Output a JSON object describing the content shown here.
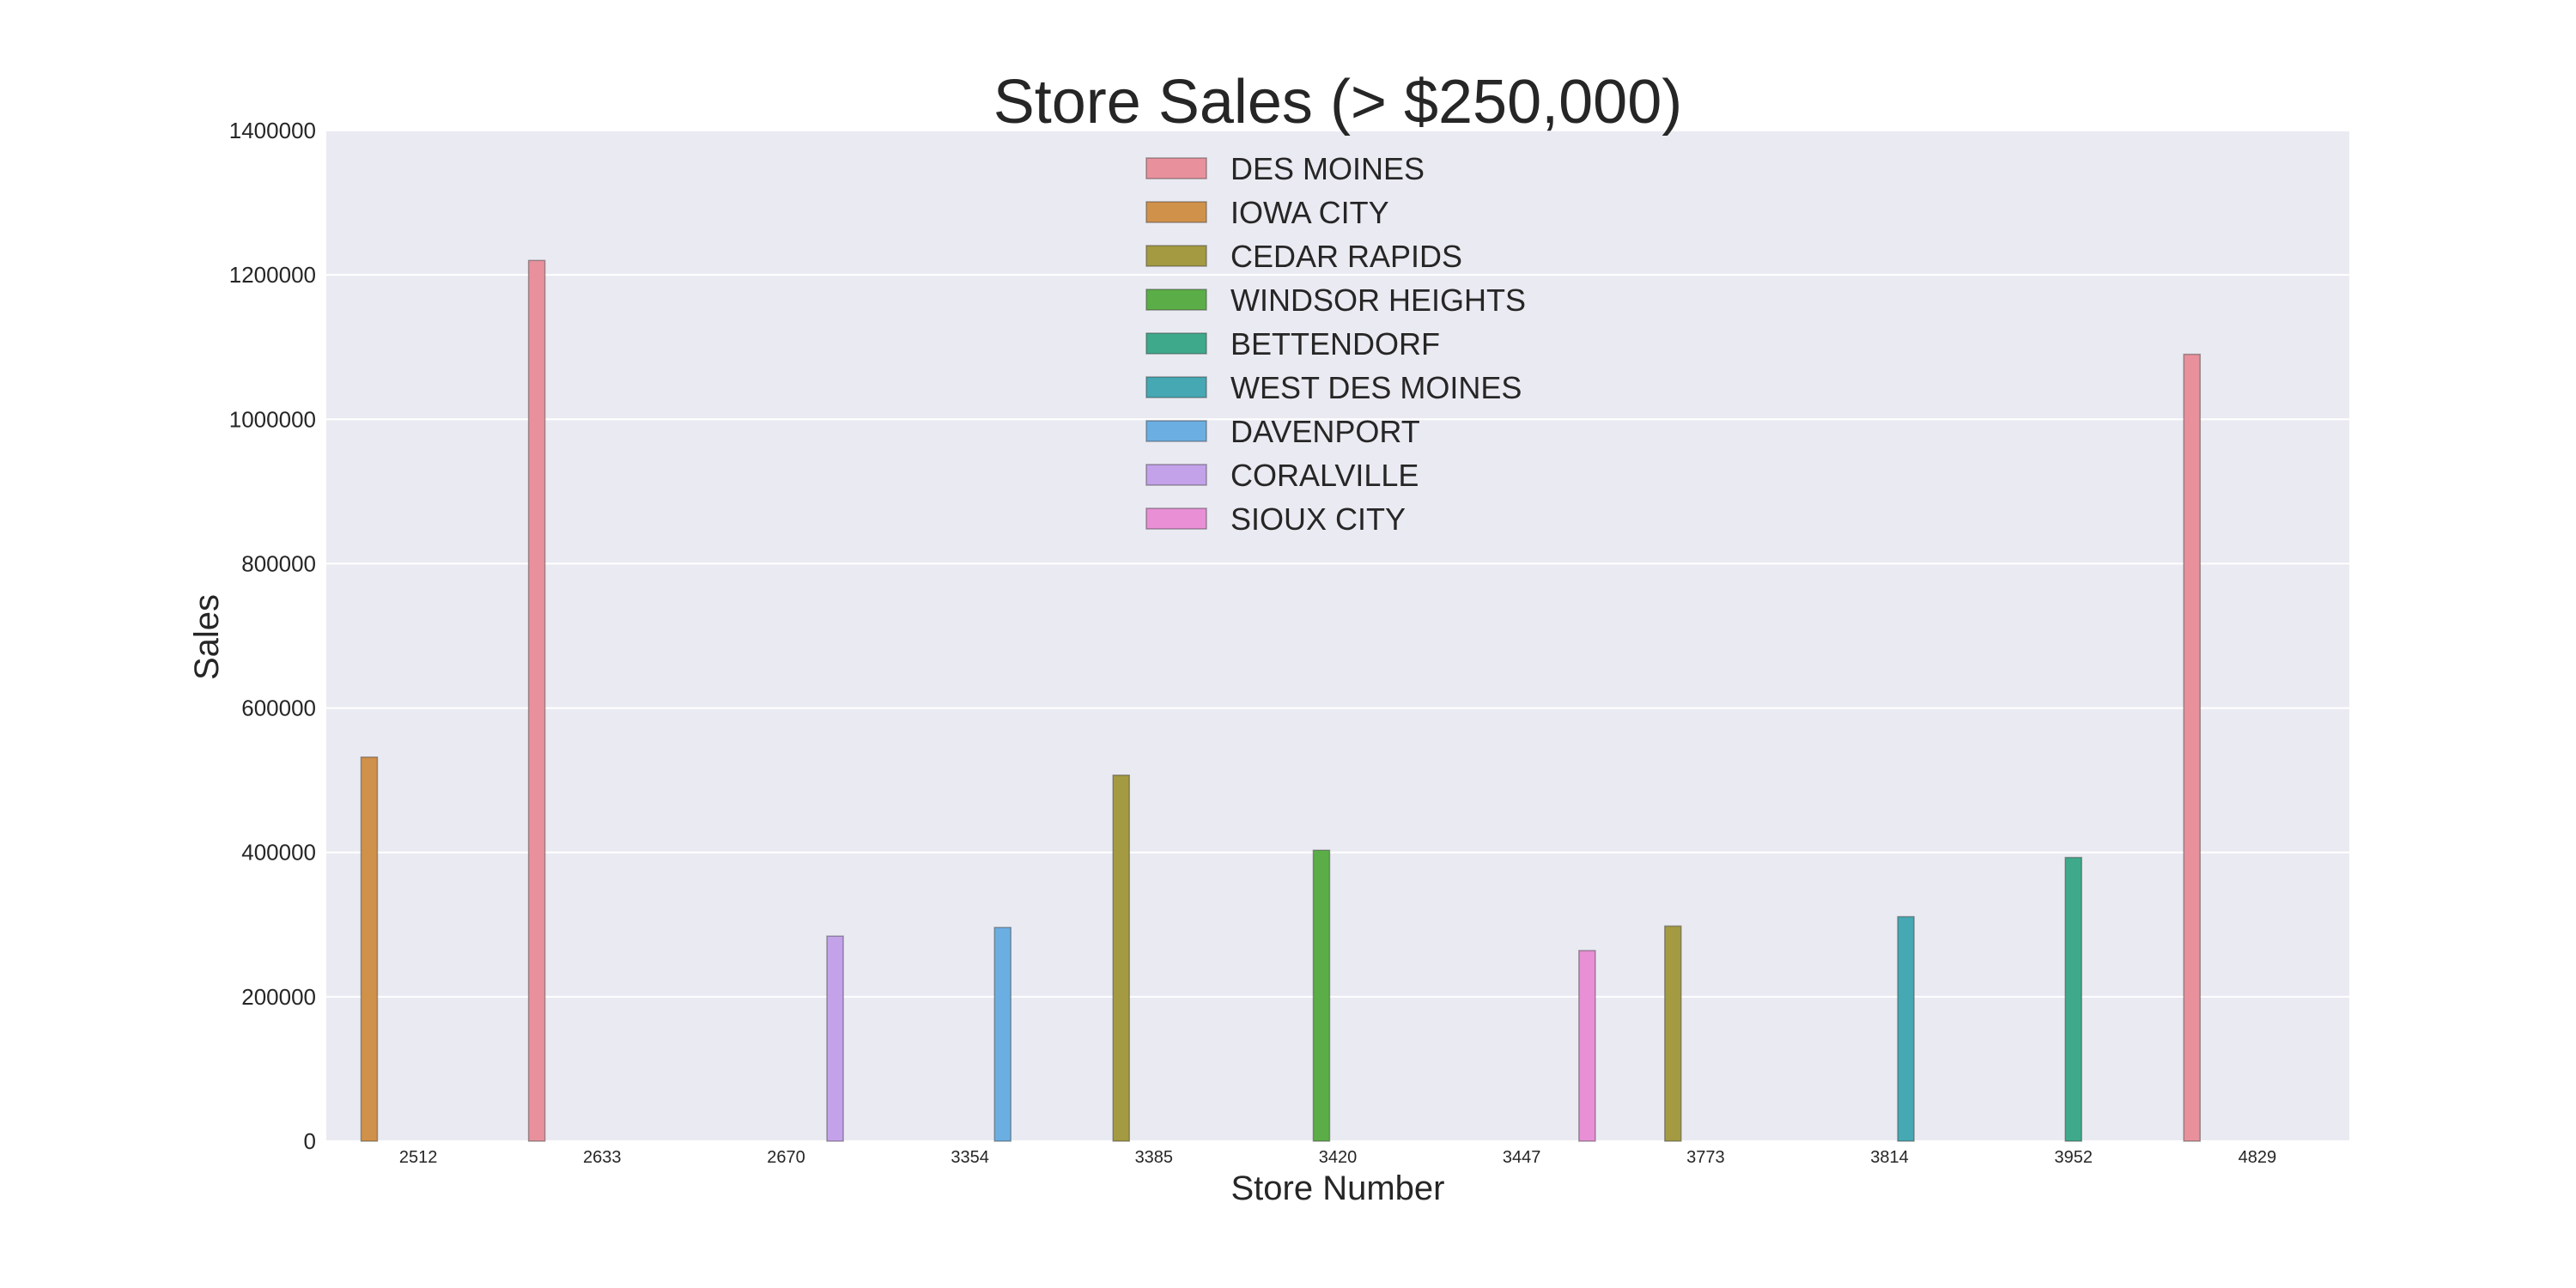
{
  "chart_data": {
    "type": "bar",
    "title": "Store Sales (> $250,000)",
    "xlabel": "Store Number",
    "ylabel": "Sales",
    "ylim": [
      0,
      1400000
    ],
    "yticks": [
      0,
      200000,
      400000,
      600000,
      800000,
      1000000,
      1200000,
      1400000
    ],
    "ytick_labels": [
      "0",
      "200000",
      "400000",
      "600000",
      "800000",
      "1000000",
      "1200000",
      "1400000"
    ],
    "categories": [
      "2512",
      "2633",
      "2670",
      "3354",
      "3385",
      "3420",
      "3447",
      "3773",
      "3814",
      "3952",
      "4829"
    ],
    "grid": true,
    "legend_position": "top-center",
    "series": [
      {
        "name": "DES MOINES",
        "color": "#E8919C",
        "values": [
          null,
          1220000,
          null,
          null,
          null,
          null,
          null,
          null,
          null,
          null,
          1090000
        ]
      },
      {
        "name": "IOWA CITY",
        "color": "#D0914A",
        "values": [
          532000,
          null,
          null,
          null,
          null,
          null,
          null,
          null,
          null,
          null,
          null
        ]
      },
      {
        "name": "CEDAR RAPIDS",
        "color": "#A39A42",
        "values": [
          null,
          null,
          null,
          null,
          507000,
          null,
          null,
          298000,
          null,
          null,
          null
        ]
      },
      {
        "name": "WINDSOR HEIGHTS",
        "color": "#5BAE47",
        "values": [
          null,
          null,
          null,
          null,
          null,
          403000,
          null,
          null,
          null,
          null,
          null
        ]
      },
      {
        "name": "BETTENDORF",
        "color": "#3EAA8B",
        "values": [
          null,
          null,
          null,
          null,
          null,
          null,
          null,
          null,
          null,
          393000,
          null
        ]
      },
      {
        "name": "WEST DES MOINES",
        "color": "#45A8B3",
        "values": [
          null,
          null,
          null,
          null,
          null,
          null,
          null,
          null,
          311000,
          null,
          null
        ]
      },
      {
        "name": "DAVENPORT",
        "color": "#6BAEE2",
        "values": [
          null,
          null,
          null,
          296000,
          null,
          null,
          null,
          null,
          null,
          null,
          null
        ]
      },
      {
        "name": "CORALVILLE",
        "color": "#C3A2EA",
        "values": [
          null,
          null,
          284000,
          null,
          null,
          null,
          null,
          null,
          null,
          null,
          null
        ]
      },
      {
        "name": "SIOUX CITY",
        "color": "#E88FD5",
        "values": [
          null,
          null,
          null,
          null,
          null,
          null,
          264000,
          null,
          null,
          null,
          null
        ]
      }
    ]
  }
}
